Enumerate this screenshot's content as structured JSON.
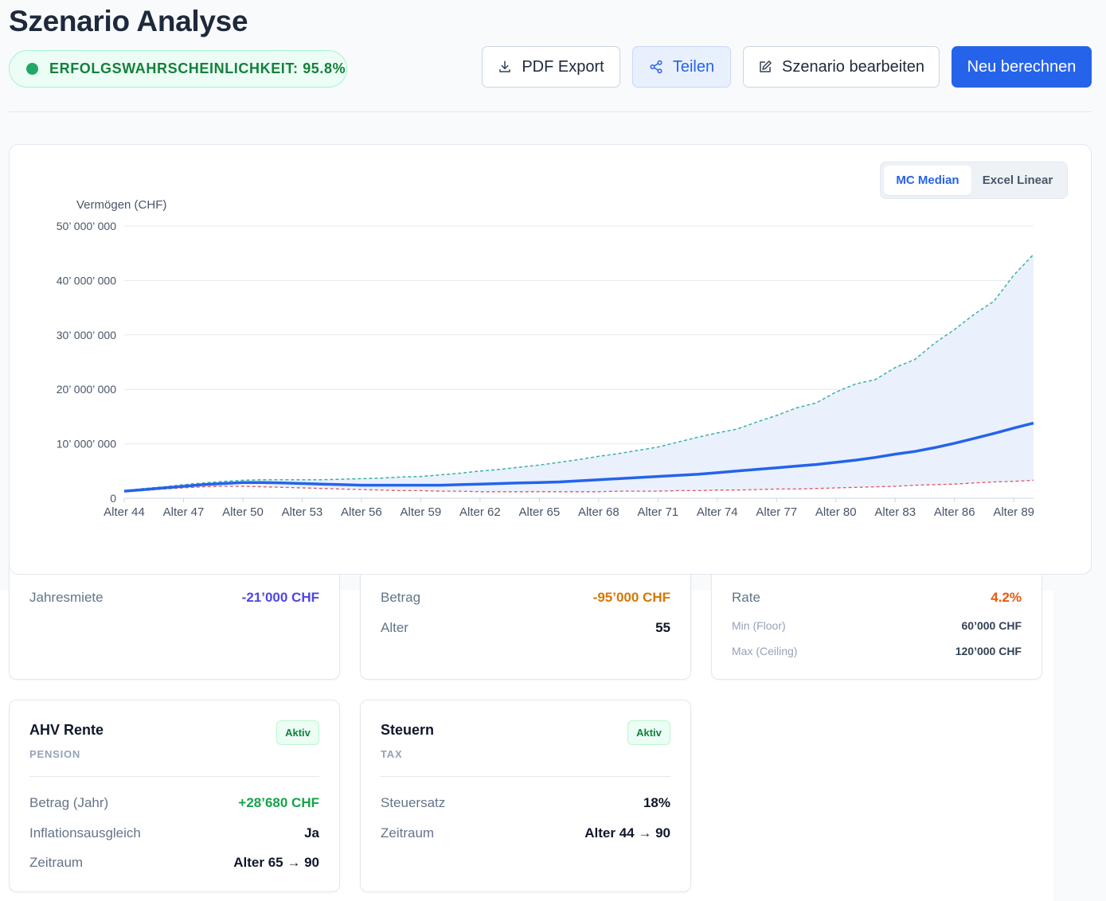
{
  "header": {
    "title": "Szenario Analyse",
    "probability_text": "ERFOLGSWAHRSCHEINLICHKEIT: 95.8%"
  },
  "toolbar": {
    "pdf_label": "PDF Export",
    "share_label": "Teilen",
    "edit_label": "Szenario bearbeiten",
    "recalc_label": "Neu berechnen"
  },
  "chart_toggle": {
    "options": [
      "MC Median",
      "Excel Linear"
    ],
    "selected": "MC Median"
  },
  "chart_data": {
    "type": "area",
    "ylabel": "Vermögen (CHF)",
    "xlabel": "",
    "ylim": [
      0,
      50000000
    ],
    "y_ticks": [
      0,
      10000000,
      20000000,
      30000000,
      40000000,
      50000000
    ],
    "y_tick_labels": [
      "0",
      "10’ 000’ 000",
      "20’ 000’ 000",
      "30’ 000’ 000",
      "40’ 000’ 000",
      "50’ 000’ 000"
    ],
    "x": [
      44,
      45,
      46,
      47,
      48,
      49,
      50,
      51,
      52,
      53,
      54,
      55,
      56,
      57,
      58,
      59,
      60,
      61,
      62,
      63,
      64,
      65,
      66,
      67,
      68,
      69,
      70,
      71,
      72,
      73,
      74,
      75,
      76,
      77,
      78,
      79,
      80,
      81,
      82,
      83,
      84,
      85,
      86,
      87,
      88,
      89,
      90
    ],
    "x_tick_labels": [
      "Alter 44",
      "Alter 47",
      "Alter 50",
      "Alter 53",
      "Alter 56",
      "Alter 59",
      "Alter 62",
      "Alter 65",
      "Alter 68",
      "Alter 71",
      "Alter 74",
      "Alter 77",
      "Alter 80",
      "Alter 83",
      "Alter 86",
      "Alter 89"
    ],
    "grid": true,
    "colors": {
      "median": "#2563eb",
      "upper": "#3bb3a6",
      "lower": "#e05661",
      "band": "#e8effc"
    },
    "series": [
      {
        "values": [
          1300000,
          1600000,
          1900000,
          2200000,
          2500000,
          2700000,
          2900000,
          2900000,
          2800000,
          2700000,
          2600000,
          2500000,
          2400000,
          2400000,
          2400000,
          2400000,
          2400000,
          2500000,
          2600000,
          2700000,
          2800000,
          2900000,
          3000000,
          3200000,
          3400000,
          3600000,
          3800000,
          4000000,
          4200000,
          4400000,
          4700000,
          5000000,
          5300000,
          5600000,
          5900000,
          6200000,
          6600000,
          7000000,
          7500000,
          8100000,
          8600000,
          9300000,
          10100000,
          11000000,
          11900000,
          12900000,
          13800000
        ]
      },
      {
        "values": [
          1400000,
          1800000,
          2100000,
          2500000,
          2800000,
          3100000,
          3300000,
          3400000,
          3400000,
          3400000,
          3400000,
          3500000,
          3600000,
          3700000,
          3900000,
          4000000,
          4300000,
          4600000,
          5000000,
          5300000,
          5700000,
          6100000,
          6600000,
          7100000,
          7700000,
          8200000,
          8800000,
          9400000,
          10300000,
          11200000,
          12000000,
          12700000,
          14000000,
          15200000,
          16600000,
          17500000,
          19500000,
          21000000,
          21800000,
          24000000,
          25500000,
          28500000,
          31000000,
          33800000,
          36200000,
          41000000,
          44800000
        ]
      },
      {
        "values": [
          1200000,
          1400000,
          1700000,
          1900000,
          2100000,
          2200000,
          2200000,
          2100000,
          2000000,
          1900000,
          1800000,
          1700000,
          1600000,
          1500000,
          1400000,
          1400000,
          1300000,
          1300000,
          1200000,
          1200000,
          1200000,
          1200000,
          1200000,
          1200000,
          1200000,
          1300000,
          1300000,
          1300000,
          1400000,
          1400000,
          1500000,
          1500000,
          1600000,
          1700000,
          1700000,
          1800000,
          1900000,
          2000000,
          2100000,
          2200000,
          2400000,
          2500000,
          2600000,
          2800000,
          3000000,
          3100000,
          3300000
        ]
      }
    ]
  },
  "cards_partial": [
    {
      "rows": [
        {
          "label": "Jahresmiete",
          "value": "-21’000 CHF",
          "color": "#4f46e5"
        }
      ]
    },
    {
      "rows": [
        {
          "label": "Betrag",
          "value": "-95’000 CHF",
          "color": "#d97706"
        },
        {
          "label": "Alter",
          "value": "55"
        }
      ]
    },
    {
      "rows": [
        {
          "label": "Rate",
          "value": "4.2%",
          "color": "#ea580c"
        },
        {
          "label": "Min (Floor)",
          "value": "60’000 CHF"
        },
        {
          "label": "Max (Ceiling)",
          "value": "120’000 CHF"
        }
      ]
    }
  ],
  "cards": [
    {
      "title": "AHV Rente",
      "subtitle": "PENSION",
      "badge": "Aktiv",
      "rows": [
        {
          "label": "Betrag (Jahr)",
          "value": "+28’680 CHF",
          "color": "#16a34a"
        },
        {
          "label": "Inflationsausgleich",
          "value": "Ja"
        },
        {
          "label": "Zeitraum",
          "value": "Alter 65 → 90"
        }
      ]
    },
    {
      "title": "Steuern",
      "subtitle": "TAX",
      "badge": "Aktiv",
      "rows": [
        {
          "label": "Steuersatz",
          "value": "18%"
        },
        {
          "label": "Zeitraum",
          "value": "Alter 44 → 90"
        }
      ]
    }
  ]
}
